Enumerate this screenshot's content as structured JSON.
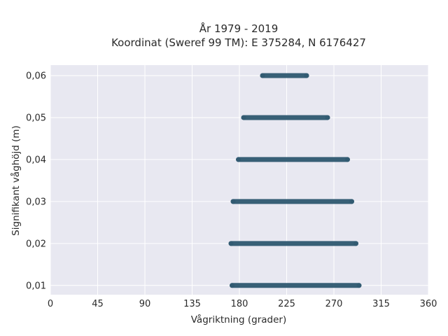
{
  "chart_data": {
    "type": "scatter",
    "title_line1": "År 1979 - 2019",
    "title_line2": "Koordinat (Sweref 99 TM): E 375284, N 6176427",
    "xlabel": "Vågriktning (grader)",
    "ylabel": "Signifikant våghöjd (m)",
    "xlim": [
      0,
      360
    ],
    "ylim": [
      0.0078,
      0.0625
    ],
    "x_ticks": [
      0,
      45,
      90,
      135,
      180,
      225,
      270,
      315,
      360
    ],
    "y_ticks": [
      0.01,
      0.02,
      0.03,
      0.04,
      0.05,
      0.06
    ],
    "y_tick_labels": [
      "0,01",
      "0,02",
      "0,03",
      "0,04",
      "0,05",
      "0,06"
    ],
    "grid": true,
    "marker_color": "#2e5870",
    "background_color": "#e8e8f1",
    "series": [
      {
        "ranges": [
          {
            "y": 0.01,
            "x_min": 173,
            "x_max": 294
          },
          {
            "y": 0.02,
            "x_min": 172,
            "x_max": 291
          },
          {
            "y": 0.03,
            "x_min": 174,
            "x_max": 287
          },
          {
            "y": 0.04,
            "x_min": 179,
            "x_max": 283
          },
          {
            "y": 0.05,
            "x_min": 184,
            "x_max": 264
          },
          {
            "y": 0.06,
            "x_min": 202,
            "x_max": 244
          }
        ]
      }
    ]
  }
}
